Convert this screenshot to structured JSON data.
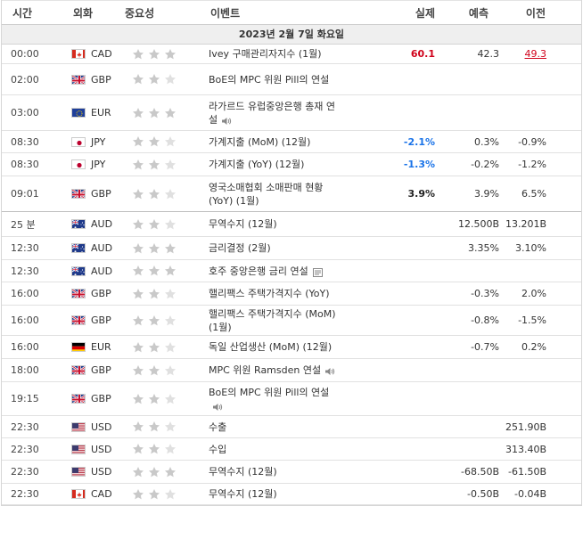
{
  "header": {
    "time": "시간",
    "currency": "외화",
    "importance": "중요성",
    "event": "이벤트",
    "actual": "실제",
    "forecast": "예측",
    "previous": "이전"
  },
  "date_label": "2023년 2월 7일 화요일",
  "colors": {
    "star_active": "#c9c9c9",
    "star_inactive": "#e0e0e0",
    "actual_red": "#d0021b",
    "actual_blue": "#1a73e8"
  },
  "rows": [
    {
      "time": "00:00",
      "flag": "CA",
      "currency": "CAD",
      "stars": 3,
      "event_lines": [
        "Ivey 구매관리자지수 (1월)"
      ],
      "icon": "",
      "actual": "60.1",
      "actual_style": "red",
      "forecast": "42.3",
      "previous": "49.3",
      "prev_style": "red-u"
    },
    {
      "time": "02:00",
      "flag": "GB",
      "currency": "GBP",
      "stars": 2,
      "event_lines": [
        "BoE의 MPC 위원 Pill의 연설",
        ""
      ],
      "icon": "",
      "actual": "",
      "actual_style": "",
      "forecast": "",
      "previous": "",
      "prev_style": ""
    },
    {
      "time": "03:00",
      "flag": "EU",
      "currency": "EUR",
      "stars": 3,
      "event_lines": [
        "라가르드 유럽중앙은행 총재 연",
        "설"
      ],
      "icon": "sound-icon",
      "actual": "",
      "actual_style": "",
      "forecast": "",
      "previous": "",
      "prev_style": ""
    },
    {
      "time": "08:30",
      "flag": "JP",
      "currency": "JPY",
      "stars": 2,
      "event_lines": [
        "가계지출 (MoM) (12월)"
      ],
      "icon": "",
      "actual": "-2.1%",
      "actual_style": "blue",
      "forecast": "0.3%",
      "previous": "-0.9%",
      "prev_style": ""
    },
    {
      "time": "08:30",
      "flag": "JP",
      "currency": "JPY",
      "stars": 2,
      "event_lines": [
        "가계지출 (YoY) (12월)"
      ],
      "icon": "",
      "actual": "-1.3%",
      "actual_style": "blue",
      "forecast": "-0.2%",
      "previous": "-1.2%",
      "prev_style": ""
    },
    {
      "time": "09:01",
      "flag": "GB",
      "currency": "GBP",
      "stars": 2,
      "event_lines": [
        "영국소매협회 소매판매 현황",
        "(YoY) (1월)"
      ],
      "icon": "",
      "actual": "3.9%",
      "actual_style": "black-b",
      "forecast": "3.9%",
      "previous": "6.5%",
      "prev_style": "",
      "group_end": true
    },
    {
      "time": "25 분",
      "flag": "AU",
      "currency": "AUD",
      "stars": 2,
      "event_lines": [
        "무역수지 (12월)"
      ],
      "icon": "",
      "actual": "",
      "actual_style": "",
      "forecast": "12.500B",
      "previous": "13.201B",
      "prev_style": ""
    },
    {
      "time": "12:30",
      "flag": "AU",
      "currency": "AUD",
      "stars": 3,
      "event_lines": [
        "금리결정 (2월)"
      ],
      "icon": "",
      "actual": "",
      "actual_style": "",
      "forecast": "3.35%",
      "previous": "3.10%",
      "prev_style": ""
    },
    {
      "time": "12:30",
      "flag": "AU",
      "currency": "AUD",
      "stars": 3,
      "event_lines": [
        "호주 중앙은행 금리 연설"
      ],
      "icon": "book-icon",
      "actual": "",
      "actual_style": "",
      "forecast": "",
      "previous": "",
      "prev_style": ""
    },
    {
      "time": "16:00",
      "flag": "GB",
      "currency": "GBP",
      "stars": 2,
      "event_lines": [
        "핼리팩스 주택가격지수 (YoY)"
      ],
      "icon": "",
      "actual": "",
      "actual_style": "",
      "forecast": "-0.3%",
      "previous": "2.0%",
      "prev_style": ""
    },
    {
      "time": "16:00",
      "flag": "GB",
      "currency": "GBP",
      "stars": 2,
      "event_lines": [
        "핼리팩스 주택가격지수 (MoM)",
        "(1월)"
      ],
      "icon": "",
      "actual": "",
      "actual_style": "",
      "forecast": "-0.8%",
      "previous": "-1.5%",
      "prev_style": ""
    },
    {
      "time": "16:00",
      "flag": "DE",
      "currency": "EUR",
      "stars": 2,
      "event_lines": [
        "독일 산업생산 (MoM) (12월)"
      ],
      "icon": "",
      "actual": "",
      "actual_style": "",
      "forecast": "-0.7%",
      "previous": "0.2%",
      "prev_style": ""
    },
    {
      "time": "18:00",
      "flag": "GB",
      "currency": "GBP",
      "stars": 2,
      "event_lines": [
        "MPC 위원 Ramsden 연설"
      ],
      "icon": "sound-icon",
      "actual": "",
      "actual_style": "",
      "forecast": "",
      "previous": "",
      "prev_style": ""
    },
    {
      "time": "19:15",
      "flag": "GB",
      "currency": "GBP",
      "stars": 2,
      "event_lines": [
        "BoE의 MPC 위원 Pill의 연설",
        ""
      ],
      "icon": "sound-icon",
      "actual": "",
      "actual_style": "",
      "forecast": "",
      "previous": "",
      "prev_style": ""
    },
    {
      "time": "22:30",
      "flag": "US",
      "currency": "USD",
      "stars": 2,
      "event_lines": [
        "수출"
      ],
      "icon": "",
      "actual": "",
      "actual_style": "",
      "forecast": "",
      "previous": "251.90B",
      "prev_style": ""
    },
    {
      "time": "22:30",
      "flag": "US",
      "currency": "USD",
      "stars": 2,
      "event_lines": [
        "수입"
      ],
      "icon": "",
      "actual": "",
      "actual_style": "",
      "forecast": "",
      "previous": "313.40B",
      "prev_style": ""
    },
    {
      "time": "22:30",
      "flag": "US",
      "currency": "USD",
      "stars": 3,
      "event_lines": [
        "무역수지 (12월)"
      ],
      "icon": "",
      "actual": "",
      "actual_style": "",
      "forecast": "-68.50B",
      "previous": "-61.50B",
      "prev_style": ""
    },
    {
      "time": "22:30",
      "flag": "CA",
      "currency": "CAD",
      "stars": 2,
      "event_lines": [
        "무역수지 (12월)"
      ],
      "icon": "",
      "actual": "",
      "actual_style": "",
      "forecast": "-0.50B",
      "previous": "-0.04B",
      "prev_style": ""
    }
  ]
}
